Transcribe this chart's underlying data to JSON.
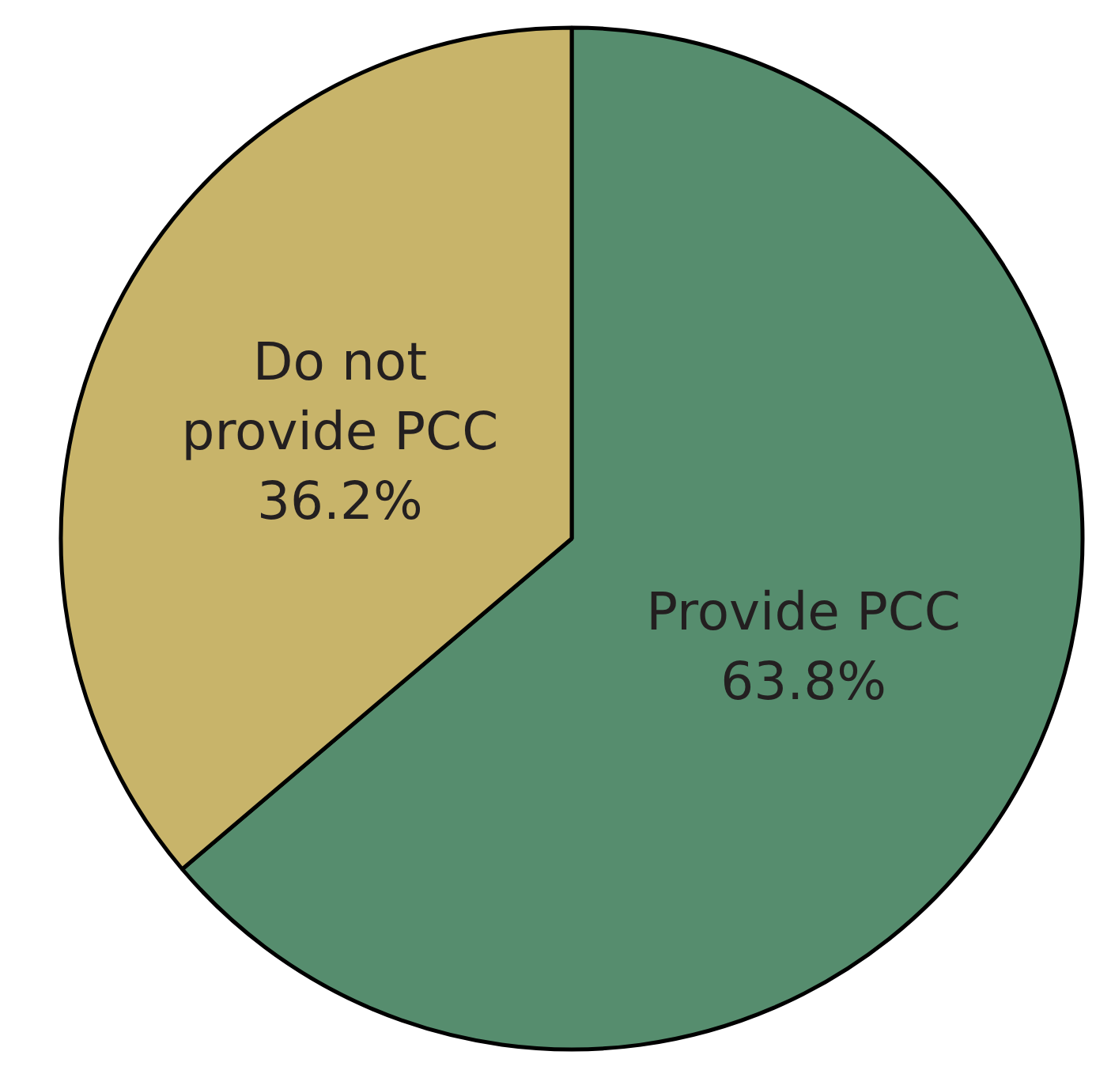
{
  "chart_data": {
    "type": "pie",
    "categories": [
      "Provide PCC",
      "Do not provide PCC"
    ],
    "values": [
      63.8,
      36.2
    ],
    "colors": [
      "#568d6e",
      "#c8b46a"
    ],
    "value_labels": [
      "63.8%",
      "36.2%"
    ]
  }
}
